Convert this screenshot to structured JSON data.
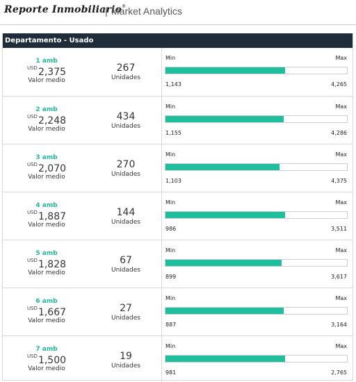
{
  "header": {
    "logo": "Reporte Inmobiliario",
    "logo_mark": "®",
    "separator": "|",
    "subtitle": "Market Analytics"
  },
  "table": {
    "title": "Departamento - Usado",
    "currency": "USD",
    "value_label": "Valor medio",
    "units_label": "Unidades",
    "min_label": "Min",
    "max_label": "Max",
    "accent_color": "#1fbf9d",
    "header_color": "#1f2d3a",
    "rows": [
      {
        "amb": "1 amb",
        "value": "2,375",
        "units": "267",
        "min": "1,143",
        "max": "4,265",
        "fill": 0.66
      },
      {
        "amb": "2 amb",
        "value": "2,248",
        "units": "434",
        "min": "1,155",
        "max": "4,286",
        "fill": 0.65
      },
      {
        "amb": "3 amb",
        "value": "2,070",
        "units": "270",
        "min": "1,103",
        "max": "4,375",
        "fill": 0.63
      },
      {
        "amb": "4 amb",
        "value": "1,887",
        "units": "144",
        "min": "986",
        "max": "3,511",
        "fill": 0.66
      },
      {
        "amb": "5 amb",
        "value": "1,828",
        "units": "67",
        "min": "899",
        "max": "3,617",
        "fill": 0.64
      },
      {
        "amb": "6 amb",
        "value": "1,667",
        "units": "27",
        "min": "887",
        "max": "3,164",
        "fill": 0.65
      },
      {
        "amb": "7 amb",
        "value": "1,500",
        "units": "19",
        "min": "981",
        "max": "2,765",
        "fill": 0.66
      }
    ]
  }
}
